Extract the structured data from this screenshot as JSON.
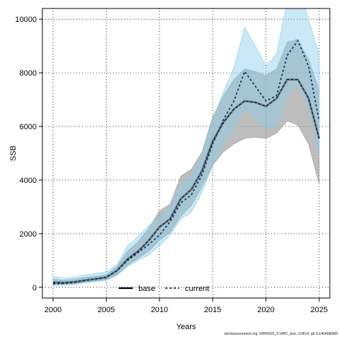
{
  "chart_data": {
    "type": "line",
    "xlabel": "Years",
    "ylabel": "SSB",
    "xlim": [
      1999,
      2026
    ],
    "ylim": [
      -400,
      10400
    ],
    "x_ticks": [
      2000,
      2005,
      2010,
      2015,
      2020,
      2025
    ],
    "y_ticks": [
      0,
      2000,
      4000,
      6000,
      8000,
      10000
    ],
    "grid": true,
    "legend_position": "bottom",
    "x": [
      2000,
      2001,
      2002,
      2003,
      2004,
      2005,
      2006,
      2007,
      2008,
      2009,
      2010,
      2011,
      2012,
      2013,
      2014,
      2015,
      2016,
      2017,
      2018,
      2019,
      2020,
      2021,
      2022,
      2023,
      2024,
      2025
    ],
    "series": [
      {
        "name": "base",
        "line_style": "solid",
        "color": "#000000",
        "band_color": "#999999",
        "values": [
          180,
          170,
          200,
          260,
          310,
          370,
          620,
          1050,
          1350,
          1750,
          2250,
          2550,
          3300,
          3650,
          4350,
          5450,
          6150,
          6650,
          6950,
          6900,
          6750,
          7050,
          7750,
          7750,
          7050,
          5550
        ],
        "lower": [
          110,
          110,
          130,
          190,
          230,
          290,
          460,
          820,
          1080,
          1350,
          1750,
          2050,
          2650,
          3050,
          3750,
          4550,
          5050,
          5350,
          5550,
          5600,
          5550,
          5750,
          6200,
          6050,
          5350,
          3850
        ],
        "upper": [
          300,
          270,
          300,
          370,
          410,
          470,
          770,
          1350,
          1700,
          2200,
          2850,
          3100,
          4150,
          4400,
          5050,
          6350,
          7150,
          7750,
          8150,
          8050,
          7900,
          8150,
          9150,
          9250,
          8500,
          7350
        ]
      },
      {
        "name": "current",
        "line_style": "dashed",
        "color": "#0a3d6b",
        "band_color": "#87ceeb",
        "values": [
          130,
          140,
          180,
          250,
          320,
          380,
          620,
          1000,
          1300,
          1600,
          1950,
          2450,
          3150,
          3450,
          4200,
          5350,
          6250,
          6950,
          8050,
          7500,
          6950,
          7150,
          8650,
          9200,
          8250,
          6200
        ],
        "lower": [
          70,
          80,
          110,
          160,
          220,
          260,
          440,
          780,
          1000,
          1200,
          1550,
          1950,
          2550,
          2800,
          3550,
          4550,
          5350,
          5950,
          6750,
          6300,
          5900,
          6000,
          7200,
          7600,
          6800,
          4900
        ],
        "upper": [
          400,
          350,
          380,
          460,
          520,
          560,
          850,
          1550,
          1900,
          2300,
          2650,
          2950,
          3850,
          4150,
          4900,
          6250,
          7300,
          8200,
          9700,
          9000,
          8250,
          8700,
          10700,
          11300,
          10000,
          8700
        ]
      }
    ]
  },
  "credit": "stockassessment.org, NWW026_S-WBC_test, r10814, git:1cc464b8086f"
}
